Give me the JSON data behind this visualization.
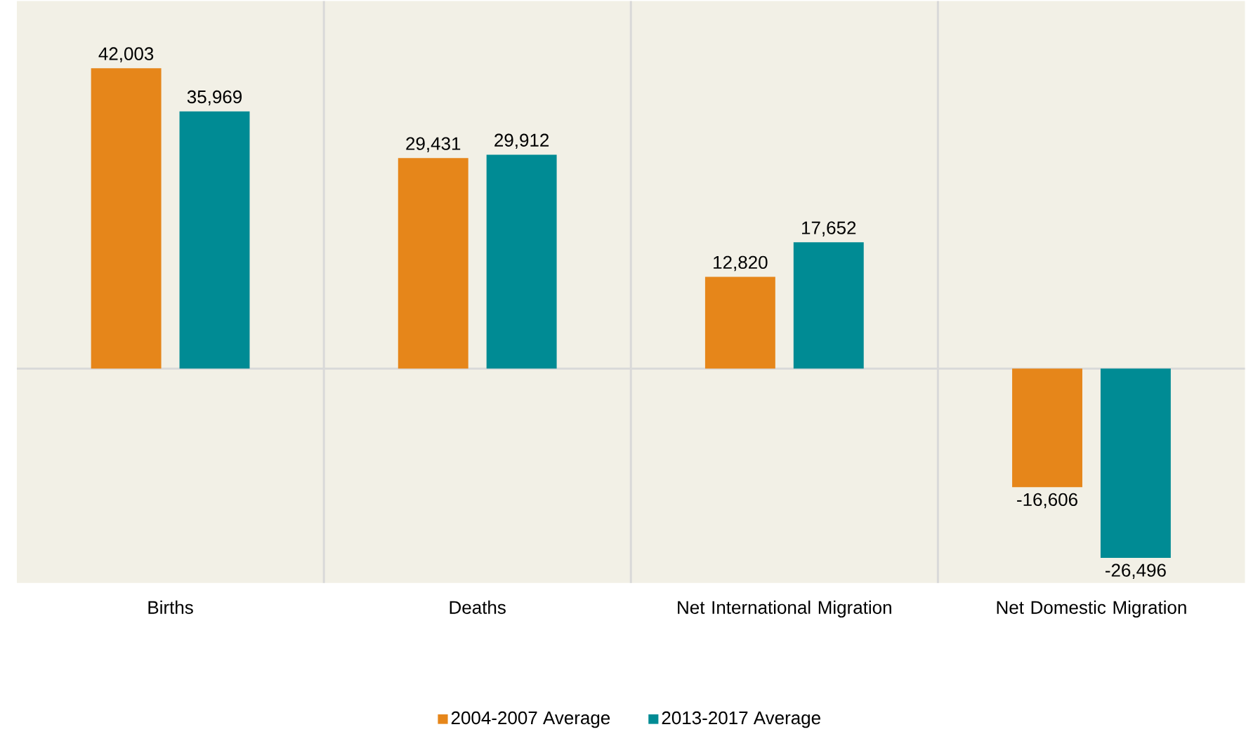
{
  "chart_data": {
    "type": "bar",
    "categories": [
      "Births",
      "Deaths",
      "Net International Migration",
      "Net Domestic Migration"
    ],
    "series": [
      {
        "name": "2004-2007 Average",
        "color": "#e6861a",
        "values": [
          42003,
          29431,
          12820,
          -16606
        ],
        "value_labels": [
          "42,003",
          "29,431",
          "12,820",
          "-16,606"
        ]
      },
      {
        "name": "2013-2017 Average",
        "color": "#008b94",
        "values": [
          35969,
          29912,
          17652,
          -26496
        ],
        "value_labels": [
          "35,969",
          "29,912",
          "17,652",
          "-26,496"
        ]
      }
    ],
    "ylim": [
      -30000,
      51400
    ],
    "tick_labels": "x",
    "grid": "x",
    "legend": "bottom"
  }
}
